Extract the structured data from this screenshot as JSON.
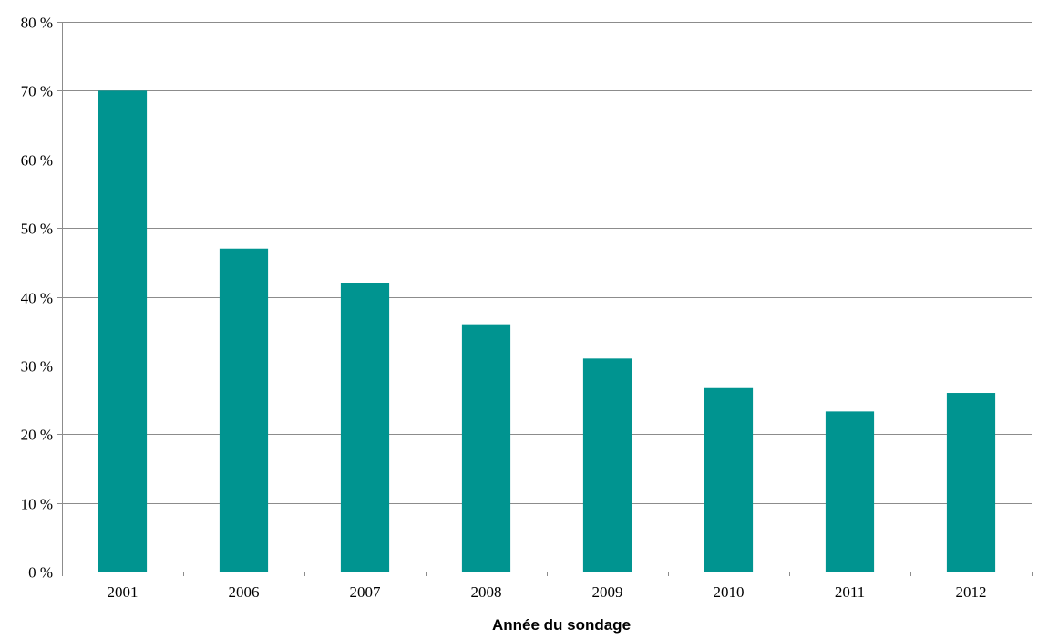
{
  "chart_data": {
    "type": "bar",
    "categories": [
      "2001",
      "2006",
      "2007",
      "2008",
      "2009",
      "2010",
      "2011",
      "2012"
    ],
    "values": [
      70,
      47,
      42,
      36,
      31,
      26.7,
      23.3,
      26
    ],
    "xlabel": "Année du sondage",
    "ylabel": "",
    "ylim": [
      0,
      80
    ],
    "yticks": [
      0,
      10,
      20,
      30,
      40,
      50,
      60,
      70,
      80
    ],
    "ytick_labels": [
      "0 %",
      "10 %",
      "20 %",
      "30 %",
      "40 %",
      "50 %",
      "60 %",
      "70 %",
      "80 %"
    ],
    "grid": true,
    "bar_color": "#009490",
    "grid_color": "#8c8c8c"
  }
}
